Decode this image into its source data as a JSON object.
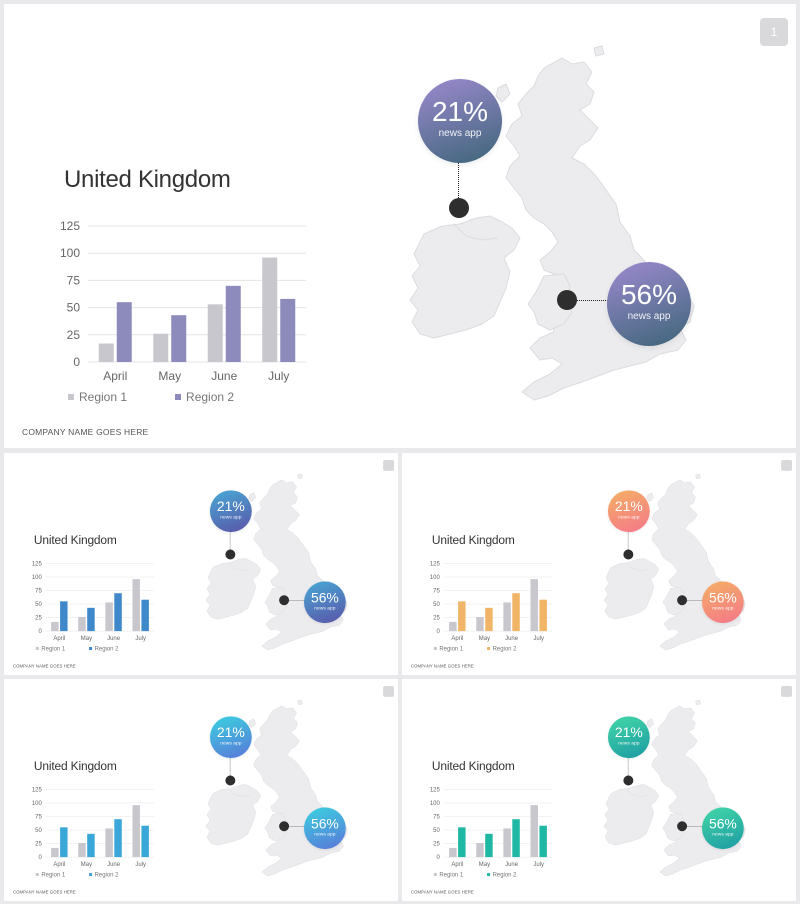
{
  "slides": [
    {
      "id": "main",
      "page_number": "1",
      "title": "United Kingdom",
      "company": "COMPANY NAME GOES HERE",
      "bubble_top": {
        "percent": "21%",
        "label": "news app"
      },
      "bubble_bottom": {
        "percent": "56%",
        "label": "news app"
      },
      "colors": {
        "region1": "#c9c7ce",
        "region2": "#8c8bbc",
        "bubble_from": "#9d8ad0",
        "bubble_to": "#3d6578"
      }
    },
    {
      "id": "blue",
      "page_number": "",
      "title": "United Kingdom",
      "company": "COMPANY NAME GOES HERE",
      "bubble_top": {
        "percent": "21%",
        "label": "news app"
      },
      "bubble_bottom": {
        "percent": "56%",
        "label": "news app"
      },
      "colors": {
        "region1": "#c9c7ce",
        "region2": "#3f88c9",
        "bubble_from": "#48a9d6",
        "bubble_to": "#5a54a8"
      }
    },
    {
      "id": "orange",
      "page_number": "",
      "title": "United Kingdom",
      "company": "COMPANY NAME GOES HERE",
      "bubble_top": {
        "percent": "21%",
        "label": "news app"
      },
      "bubble_bottom": {
        "percent": "56%",
        "label": "news app"
      },
      "colors": {
        "region1": "#c9c7ce",
        "region2": "#f0b566",
        "bubble_from": "#f5b064",
        "bubble_to": "#f3778a"
      }
    },
    {
      "id": "cyan",
      "page_number": "",
      "title": "United Kingdom",
      "company": "COMPANY NAME GOES HERE",
      "bubble_top": {
        "percent": "21%",
        "label": "news app"
      },
      "bubble_bottom": {
        "percent": "56%",
        "label": "news app"
      },
      "colors": {
        "region1": "#c9c7ce",
        "region2": "#3aa7d8",
        "bubble_from": "#3ad2e0",
        "bubble_to": "#5a76d8"
      }
    },
    {
      "id": "teal",
      "page_number": "",
      "title": "United Kingdom",
      "company": "COMPANY NAME GOES HERE",
      "bubble_top": {
        "percent": "21%",
        "label": "news app"
      },
      "bubble_bottom": {
        "percent": "56%",
        "label": "news app"
      },
      "colors": {
        "region1": "#c9c7ce",
        "region2": "#1fb8a4",
        "bubble_from": "#43d8a8",
        "bubble_to": "#1c9aa3"
      }
    }
  ],
  "chart_data": {
    "type": "bar",
    "categories": [
      "April",
      "May",
      "June",
      "July"
    ],
    "series": [
      {
        "name": "Region 1",
        "values": [
          17,
          26,
          53,
          96
        ]
      },
      {
        "name": "Region 2",
        "values": [
          55,
          43,
          70,
          58
        ]
      }
    ],
    "yticks": [
      "0",
      "25",
      "50",
      "75",
      "100",
      "125"
    ],
    "ylim": [
      0,
      125
    ],
    "grid": true,
    "legend_position": "bottom"
  }
}
